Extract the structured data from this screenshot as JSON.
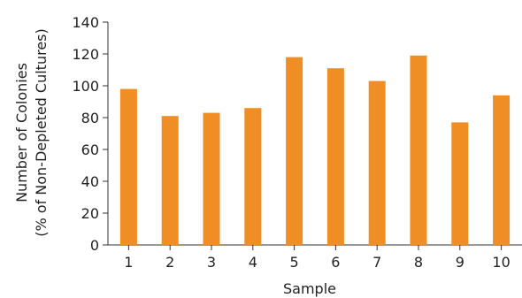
{
  "chart_data": {
    "type": "bar",
    "title": "",
    "xlabel": "Sample",
    "ylabel_line1": "Number of Colonies",
    "ylabel_line2": "(% of Non-Depleted Cultures)",
    "categories": [
      "1",
      "2",
      "3",
      "4",
      "5",
      "6",
      "7",
      "8",
      "9",
      "10"
    ],
    "values": [
      98,
      81,
      83,
      86,
      118,
      111,
      103,
      119,
      77,
      94
    ],
    "ylim": [
      0,
      140
    ],
    "yticks": [
      0,
      20,
      40,
      60,
      80,
      100,
      120,
      140
    ],
    "grid": false,
    "legend": "none",
    "bar_color": "#EE8E25"
  }
}
